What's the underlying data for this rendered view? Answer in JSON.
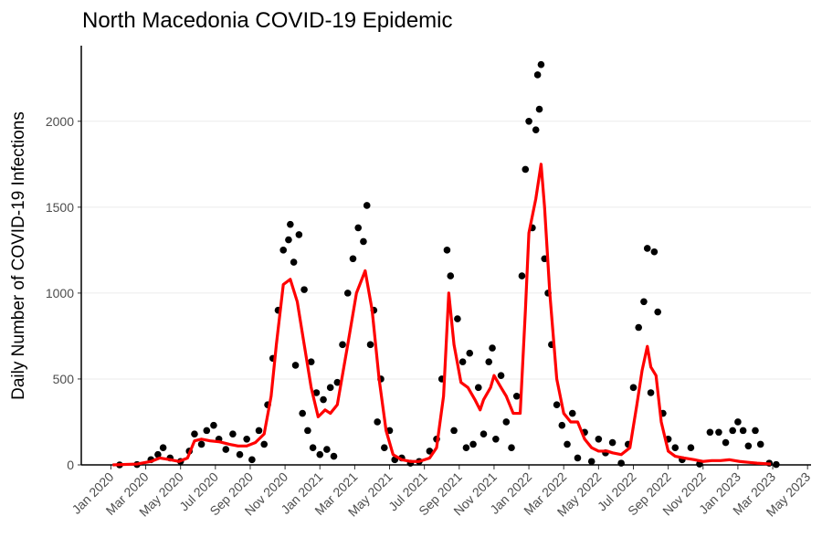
{
  "chart_data": {
    "type": "scatter",
    "title": "North Macedonia COVID-19 Epidemic",
    "y_label": "Daily Number of COVID-19 Infections",
    "xlim": [
      -1.7,
      40.2
    ],
    "ylim": [
      0,
      2440
    ],
    "xticks": [
      {
        "value": 0,
        "label": "Jan 2020"
      },
      {
        "value": 2,
        "label": "Mar 2020"
      },
      {
        "value": 4,
        "label": "May 2020"
      },
      {
        "value": 6,
        "label": "Jul 2020"
      },
      {
        "value": 8,
        "label": "Sep 2020"
      },
      {
        "value": 10,
        "label": "Nov 2020"
      },
      {
        "value": 12,
        "label": "Jan 2021"
      },
      {
        "value": 14,
        "label": "Mar 2021"
      },
      {
        "value": 16,
        "label": "May 2021"
      },
      {
        "value": 18,
        "label": "Jul 2021"
      },
      {
        "value": 20,
        "label": "Sep 2021"
      },
      {
        "value": 22,
        "label": "Nov 2021"
      },
      {
        "value": 24,
        "label": "Jan 2022"
      },
      {
        "value": 26,
        "label": "Mar 2022"
      },
      {
        "value": 28,
        "label": "May 2022"
      },
      {
        "value": 30,
        "label": "Jul 2022"
      },
      {
        "value": 32,
        "label": "Sep 2022"
      },
      {
        "value": 34,
        "label": "Nov 2022"
      },
      {
        "value": 36,
        "label": "Jan 2023"
      },
      {
        "value": 38,
        "label": "Mar 2023"
      },
      {
        "value": 40,
        "label": "May 2023"
      }
    ],
    "yticks": [
      0,
      500,
      1000,
      1500,
      2000
    ],
    "grid": true,
    "series": [
      {
        "type": "scatter",
        "color": "#000000",
        "x": [
          0.5,
          1.5,
          2.3,
          2.7,
          3.0,
          3.4,
          4.0,
          4.5,
          4.8,
          5.2,
          5.5,
          5.9,
          6.2,
          6.6,
          7.0,
          7.4,
          7.8,
          8.1,
          8.5,
          8.8,
          9.0,
          9.3,
          9.6,
          9.9,
          10.2,
          10.3,
          10.5,
          10.6,
          10.8,
          11.0,
          11.1,
          11.3,
          11.5,
          11.6,
          11.8,
          12.0,
          12.2,
          12.4,
          12.6,
          12.8,
          13.0,
          13.3,
          13.6,
          13.9,
          14.2,
          14.5,
          14.7,
          14.9,
          15.1,
          15.3,
          15.5,
          15.7,
          16.0,
          16.3,
          16.7,
          17.2,
          17.7,
          18.3,
          18.7,
          19.0,
          19.3,
          19.5,
          19.7,
          19.9,
          20.2,
          20.4,
          20.6,
          20.8,
          21.1,
          21.4,
          21.7,
          21.9,
          22.1,
          22.4,
          22.7,
          23.0,
          23.3,
          23.6,
          23.8,
          24.0,
          24.2,
          24.4,
          24.5,
          24.6,
          24.7,
          24.9,
          25.1,
          25.3,
          25.6,
          25.9,
          26.2,
          26.5,
          26.8,
          27.2,
          27.6,
          28.0,
          28.4,
          28.8,
          29.3,
          29.7,
          30.0,
          30.3,
          30.6,
          30.8,
          31.0,
          31.2,
          31.4,
          31.7,
          32.0,
          32.4,
          32.8,
          33.3,
          33.8,
          34.4,
          34.9,
          35.3,
          35.7,
          36.0,
          36.3,
          36.6,
          37.0,
          37.3,
          37.8,
          38.2
        ],
        "values": [
          0,
          2,
          30,
          60,
          100,
          40,
          20,
          80,
          180,
          120,
          200,
          230,
          150,
          90,
          180,
          60,
          150,
          30,
          200,
          120,
          350,
          620,
          900,
          1250,
          1310,
          1400,
          1180,
          580,
          1340,
          300,
          1020,
          200,
          600,
          100,
          420,
          60,
          380,
          90,
          450,
          50,
          480,
          700,
          1000,
          1200,
          1380,
          1300,
          1510,
          700,
          900,
          250,
          500,
          100,
          200,
          30,
          40,
          10,
          20,
          80,
          150,
          500,
          1250,
          1100,
          200,
          850,
          600,
          100,
          650,
          120,
          450,
          180,
          600,
          680,
          150,
          520,
          250,
          100,
          400,
          1100,
          1720,
          2000,
          1380,
          1950,
          2270,
          2070,
          2330,
          1200,
          1000,
          700,
          350,
          230,
          120,
          300,
          40,
          190,
          20,
          150,
          70,
          130,
          10,
          120,
          450,
          800,
          950,
          1260,
          420,
          1240,
          890,
          300,
          150,
          100,
          30,
          100,
          5,
          190,
          190,
          130,
          200,
          250,
          200,
          110,
          200,
          120,
          10,
          2
        ]
      },
      {
        "type": "line",
        "color": "#ff0000",
        "x": [
          0.1,
          1.5,
          2.3,
          2.8,
          3.4,
          3.9,
          4.4,
          4.8,
          5.2,
          5.7,
          6.2,
          6.8,
          7.3,
          7.8,
          8.3,
          8.8,
          9.2,
          9.5,
          9.9,
          10.3,
          10.7,
          11.1,
          11.5,
          11.9,
          12.3,
          12.6,
          13.0,
          13.6,
          14.1,
          14.6,
          15.0,
          15.4,
          15.8,
          16.2,
          16.7,
          17.2,
          17.7,
          18.3,
          18.7,
          19.1,
          19.4,
          19.7,
          20.1,
          20.5,
          20.9,
          21.2,
          21.4,
          21.8,
          22.0,
          22.4,
          22.7,
          23.1,
          23.5,
          23.8,
          24.0,
          24.4,
          24.7,
          24.9,
          25.2,
          25.6,
          26.0,
          26.4,
          26.8,
          27.2,
          27.6,
          28.0,
          28.5,
          28.8,
          29.3,
          29.8,
          30.2,
          30.5,
          30.8,
          31.0,
          31.3,
          31.6,
          32.0,
          32.4,
          32.9,
          33.5,
          34.0,
          34.5,
          35.0,
          35.5,
          36.1,
          36.6,
          37.1,
          37.9
        ],
        "values": [
          0,
          5,
          20,
          40,
          30,
          20,
          40,
          140,
          150,
          140,
          135,
          120,
          110,
          110,
          130,
          180,
          400,
          700,
          1050,
          1080,
          950,
          700,
          450,
          280,
          320,
          300,
          350,
          700,
          1000,
          1130,
          900,
          500,
          200,
          60,
          30,
          20,
          20,
          40,
          100,
          400,
          1000,
          700,
          480,
          450,
          380,
          320,
          380,
          450,
          520,
          450,
          400,
          300,
          300,
          900,
          1350,
          1550,
          1750,
          1500,
          1000,
          500,
          300,
          250,
          250,
          150,
          100,
          80,
          80,
          70,
          60,
          100,
          350,
          550,
          690,
          570,
          520,
          250,
          80,
          50,
          40,
          30,
          20,
          25,
          25,
          30,
          20,
          15,
          10,
          5
        ]
      }
    ]
  }
}
